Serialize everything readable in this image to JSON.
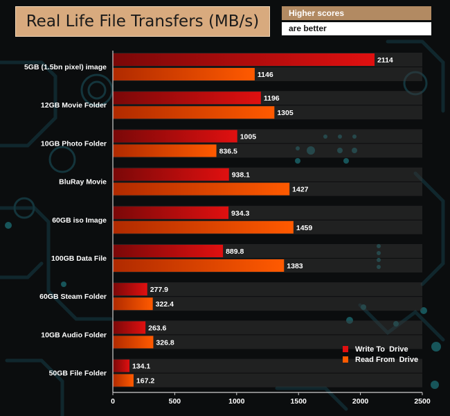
{
  "title": "Real Life File Transfers (MB/s)",
  "note": {
    "line1": "Higher scores",
    "line2": "are better"
  },
  "colors": {
    "write": "#e01010",
    "write_dark": "#7a0808",
    "read": "#ff5a00",
    "read_dark": "#b02a00",
    "title_bg": "#d8aa7e",
    "note_bg": "#b28a62"
  },
  "chart_data": {
    "type": "bar",
    "orientation": "horizontal",
    "title": "Real Life File Transfers (MB/s)",
    "xlabel": "",
    "ylabel": "",
    "xlim": [
      0,
      2500
    ],
    "xticks": [
      0,
      500,
      1000,
      1500,
      2000,
      2500
    ],
    "categories": [
      "5GB (1.5bn pixel) image",
      "12GB Movie Folder",
      "10GB Photo Folder",
      "BluRay Movie",
      "60GB iso Image",
      "100GB Data File",
      "60GB Steam Folder",
      "10GB Audio Folder",
      "50GB File Folder"
    ],
    "series": [
      {
        "name": "Write To  Drive",
        "values": [
          2114,
          1196,
          1005,
          938.1,
          934.3,
          889.8,
          277.9,
          263.6,
          134.1
        ],
        "labels": [
          "2114",
          "1196",
          "1005",
          "938.1",
          "934.3",
          "889.8",
          "277.9",
          "263.6",
          "134.1"
        ]
      },
      {
        "name": "Read From  Drive",
        "values": [
          1146,
          1305,
          836.5,
          1427,
          1459,
          1383,
          322.4,
          326.8,
          167.2
        ],
        "labels": [
          "1146",
          "1305",
          "836.5",
          "1427",
          "1459",
          "1383",
          "322.4",
          "326.8",
          "167.2"
        ]
      }
    ],
    "legend_position": "bottom-right"
  }
}
